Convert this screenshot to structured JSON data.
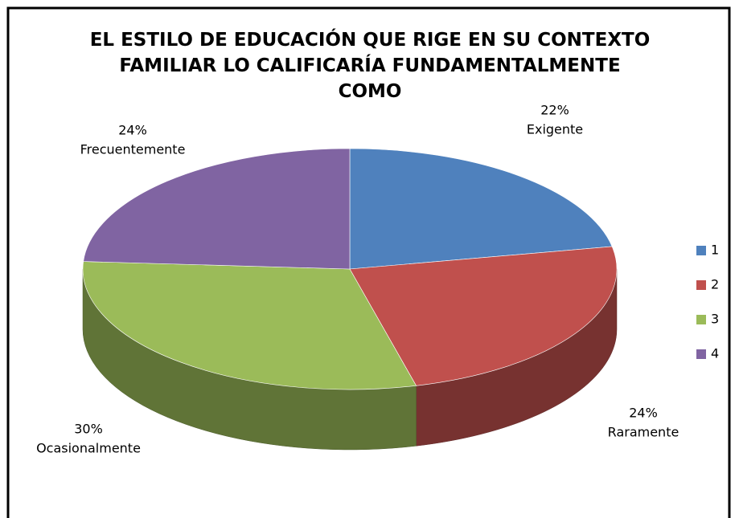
{
  "chart_data": {
    "type": "pie",
    "title": "EL ESTILO DE EDUCACIÓN QUE RIGE EN SU CONTEXTO FAMILIAR LO CALIFICARÍA FUNDAMENTALMENTE COMO",
    "categories": [
      "1",
      "2",
      "3",
      "4"
    ],
    "values": [
      22,
      24,
      30,
      24
    ],
    "value_labels": [
      "22%",
      "24%",
      "30%",
      "24%"
    ],
    "slice_names": [
      "Exigente",
      "Raramente",
      "Ocasionalmente",
      "Frecuentemente"
    ],
    "colors": [
      "#4f81bd",
      "#c0504d",
      "#9bbb59",
      "#8064a2"
    ],
    "legend": "right"
  }
}
